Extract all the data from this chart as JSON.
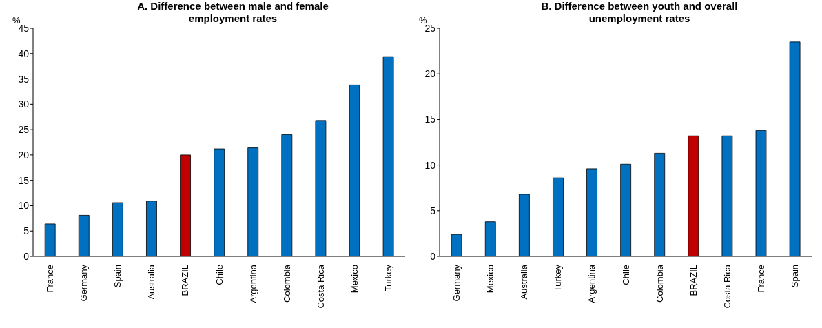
{
  "chart_data": [
    {
      "type": "bar",
      "title": "A. Difference between male and female employment rates",
      "ylabel": "%",
      "categories": [
        "France",
        "Germany",
        "Spain",
        "Australia",
        "BRAZIL",
        "Chile",
        "Argentina",
        "Colombia",
        "Costa Rica",
        "Mexico",
        "Turkey"
      ],
      "values": [
        6.4,
        8.1,
        10.6,
        10.9,
        20.0,
        21.2,
        21.4,
        24.0,
        26.8,
        33.8,
        39.4
      ],
      "colors": [
        "#0070c0",
        "#0070c0",
        "#0070c0",
        "#0070c0",
        "#c00000",
        "#0070c0",
        "#0070c0",
        "#0070c0",
        "#0070c0",
        "#0070c0",
        "#0070c0"
      ],
      "ylim": [
        0,
        45
      ],
      "yticks": [
        0,
        5,
        10,
        15,
        20,
        25,
        30,
        35,
        40,
        45
      ],
      "grid": false,
      "legend": false
    },
    {
      "type": "bar",
      "title": "B. Difference between youth and overall unemployment rates",
      "ylabel": "%",
      "categories": [
        "Germany",
        "Mexico",
        "Australia",
        "Turkey",
        "Argentina",
        "Chile",
        "Colombia",
        "BRAZIL",
        "Costa Rica",
        "France",
        "Spain"
      ],
      "values": [
        2.4,
        3.8,
        6.8,
        8.6,
        9.6,
        10.1,
        11.3,
        13.2,
        13.2,
        13.8,
        23.5
      ],
      "colors": [
        "#0070c0",
        "#0070c0",
        "#0070c0",
        "#0070c0",
        "#0070c0",
        "#0070c0",
        "#0070c0",
        "#c00000",
        "#0070c0",
        "#0070c0",
        "#0070c0"
      ],
      "ylim": [
        0,
        25
      ],
      "yticks": [
        0,
        5,
        10,
        15,
        20,
        25
      ],
      "grid": false,
      "legend": false
    }
  ]
}
